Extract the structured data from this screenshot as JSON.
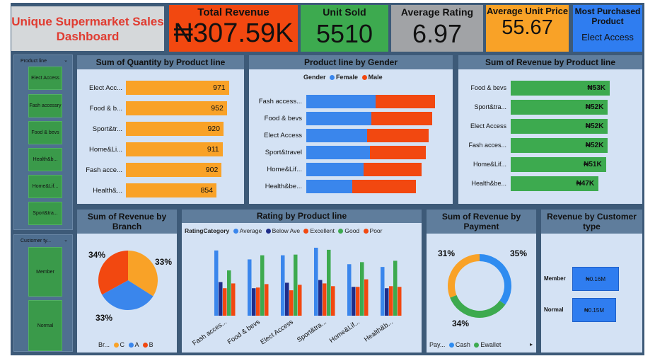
{
  "dashboard": {
    "title": "Unique Supermarket Sales Dashboard"
  },
  "kpis": {
    "total_revenue": {
      "title": "Total Revenue",
      "value": "₦307.59K"
    },
    "unit_sold": {
      "title": "Unit Sold",
      "value": "5510"
    },
    "average_rating": {
      "title": "Average Rating",
      "value": "6.97"
    },
    "average_unit_price": {
      "title": "Average Unit Price",
      "value": "55.67"
    },
    "most_purchased": {
      "title": "Most Purchased Product",
      "value": "Elect Access"
    }
  },
  "slicers": {
    "product_line": {
      "title": "Product line",
      "items": [
        "Elect Access",
        "Fash accessry",
        "Food & bevs",
        "Health&b...",
        "Home&Lif...",
        "Sport&tra..."
      ]
    },
    "customer_type": {
      "title": "Customer ty...",
      "items": [
        "Member",
        "Normal"
      ]
    }
  },
  "colors": {
    "orange": "#f9a227",
    "green": "#3daa4f",
    "blue": "#3a86ec",
    "red": "#f24810",
    "navy": "#1f2d8a"
  },
  "chart_data": [
    {
      "type": "bar",
      "title": "Sum of Quantity by Product line",
      "orientation": "horizontal",
      "categories": [
        "Elect Acc...",
        "Food & b...",
        "Sport&tr...",
        "Home&Li...",
        "Fash acce...",
        "Health&..."
      ],
      "values": [
        971,
        952,
        920,
        911,
        902,
        854
      ],
      "xlim": [
        0,
        1100
      ]
    },
    {
      "type": "bar",
      "title": "Product line by Gender",
      "orientation": "horizontal",
      "stacked": true,
      "legend_title": "Gender",
      "categories": [
        "Fash access...",
        "Food & bevs",
        "Elect Access",
        "Sport&travel",
        "Home&Lif...",
        "Health&be..."
      ],
      "series": [
        {
          "name": "Female",
          "values": [
            96,
            90,
            84,
            88,
            79,
            64
          ]
        },
        {
          "name": "Male",
          "values": [
            82,
            85,
            86,
            78,
            81,
            88
          ]
        }
      ]
    },
    {
      "type": "bar",
      "title": "Sum of Revenue by Product line",
      "orientation": "horizontal",
      "categories": [
        "Food & bevs",
        "Sport&tra...",
        "Elect Access",
        "Fash acces...",
        "Home&Lif...",
        "Health&be..."
      ],
      "values": [
        53,
        52,
        52,
        52,
        51,
        47
      ],
      "value_labels": [
        "₦53K",
        "₦52K",
        "₦52K",
        "₦52K",
        "₦51K",
        "₦47K"
      ],
      "xlim": [
        0,
        60
      ]
    },
    {
      "type": "pie",
      "title": "Sum of Revenue by Branch",
      "legend_title": "Br...",
      "labels": [
        "C",
        "A",
        "B"
      ],
      "values": [
        34,
        33,
        33
      ],
      "value_labels": [
        "34%",
        "33%",
        "33%"
      ]
    },
    {
      "type": "bar",
      "title": "Rating by Product line",
      "legend_title": "RatingCategory",
      "categories": [
        "Fash acces...",
        "Food & bevs",
        "Elect Access",
        "Sport&tra...",
        "Home&Lif...",
        "Health&b..."
      ],
      "series": [
        {
          "name": "Average",
          "values": [
            95,
            82,
            88,
            99,
            75,
            71
          ]
        },
        {
          "name": "Below Ave",
          "values": [
            49,
            40,
            48,
            52,
            42,
            40
          ]
        },
        {
          "name": "Excellent",
          "values": [
            40,
            41,
            37,
            47,
            42,
            43
          ]
        },
        {
          "name": "Good",
          "values": [
            66,
            88,
            89,
            96,
            78,
            80
          ]
        },
        {
          "name": "Poor",
          "values": [
            47,
            46,
            45,
            43,
            53,
            42
          ]
        }
      ]
    },
    {
      "type": "pie",
      "donut": true,
      "title": "Sum of Revenue by Payment",
      "legend_title": "Pay...",
      "labels": [
        "Cash",
        "Ewallet"
      ],
      "values": [
        35,
        34
      ],
      "remainder_label": "31%",
      "value_labels": [
        "35%",
        "34%"
      ],
      "remainder_value": 31
    },
    {
      "type": "bar",
      "title": "Revenue by Customer type",
      "orientation": "horizontal",
      "categories": [
        "Member",
        "Normal"
      ],
      "values": [
        0.16,
        0.15
      ],
      "value_labels": [
        "₦0.16M",
        "₦0.15M"
      ]
    }
  ]
}
